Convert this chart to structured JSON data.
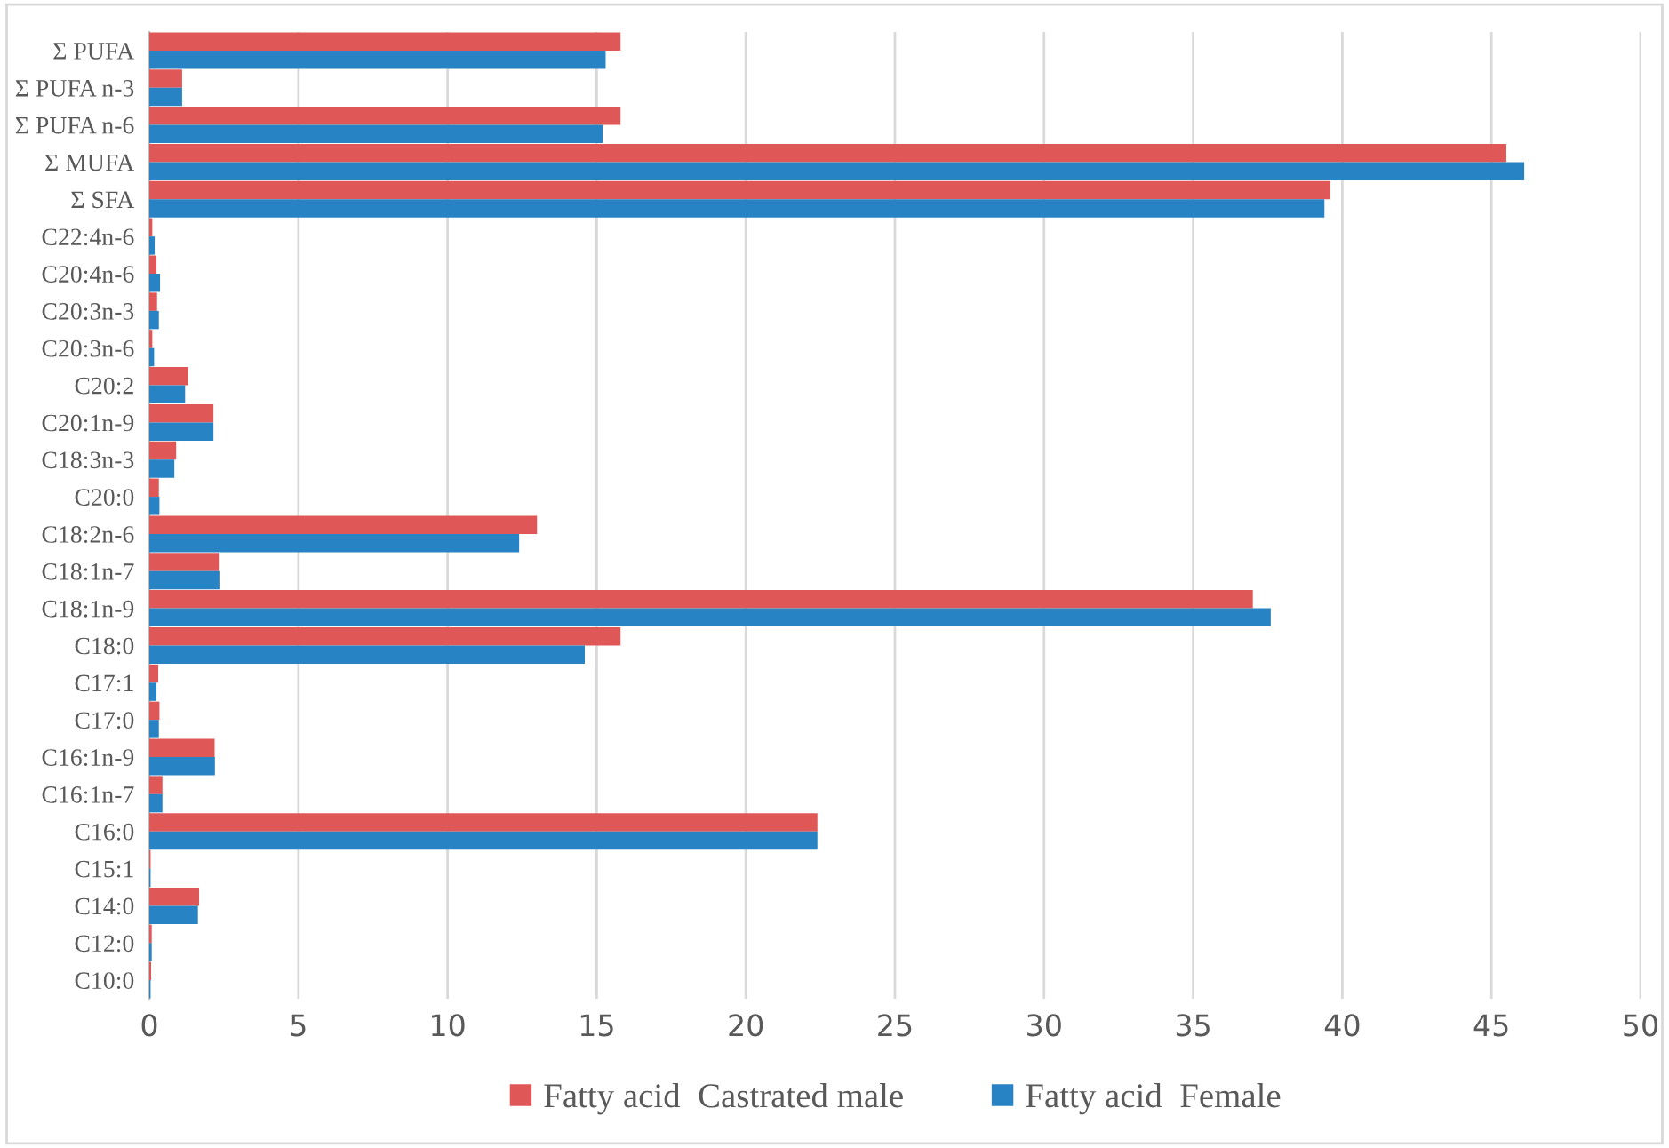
{
  "chart_data": {
    "type": "bar",
    "orientation": "horizontal",
    "categories": [
      "Σ PUFA",
      "Σ PUFA n-3",
      "Σ PUFA n-6",
      "Σ MUFA",
      "Σ SFA",
      "C22:4n-6",
      "C20:4n-6",
      "C20:3n-3",
      "C20:3n-6",
      "C20:2",
      "C20:1n-9",
      "C18:3n-3",
      "C20:0",
      "C18:2n-6",
      "C18:1n-7",
      "C18:1n-9",
      "C18:0",
      "C17:1",
      "C17:0",
      "C16:1n-9",
      "C16:1n-7",
      "C16:0",
      "C15:1",
      "C14:0",
      "C12:0",
      "C10:0"
    ],
    "series": [
      {
        "name": "Fatty acid  Castrated male",
        "color": "#e05757",
        "values": [
          15.8,
          1.1,
          15.8,
          45.5,
          39.6,
          0.1,
          0.24,
          0.26,
          0.1,
          1.3,
          2.15,
          0.9,
          0.32,
          13.0,
          2.33,
          37.0,
          15.8,
          0.3,
          0.34,
          2.19,
          0.44,
          22.4,
          0.04,
          1.67,
          0.08,
          0.06
        ]
      },
      {
        "name": "Fatty acid  Female",
        "color": "#2783c3",
        "values": [
          15.3,
          1.1,
          15.2,
          46.1,
          39.4,
          0.18,
          0.36,
          0.32,
          0.16,
          1.2,
          2.15,
          0.84,
          0.34,
          12.4,
          2.35,
          37.6,
          14.6,
          0.24,
          0.32,
          2.2,
          0.44,
          22.4,
          0.04,
          1.63,
          0.08,
          0.04
        ]
      }
    ],
    "xlim": [
      0,
      50
    ],
    "xticks": [
      0,
      5,
      10,
      15,
      20,
      25,
      30,
      35,
      40,
      45,
      50
    ],
    "grid": "x",
    "legend": "bottom"
  }
}
